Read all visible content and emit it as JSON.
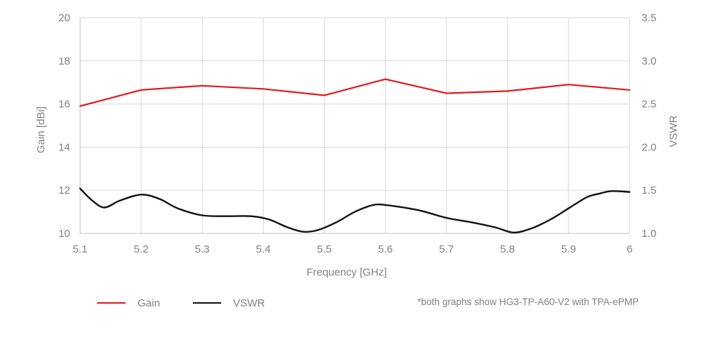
{
  "chart_data": {
    "type": "line",
    "title": "",
    "xlabel": "Frequency [GHz]",
    "ylabel_left": "Gain [dBi]",
    "ylabel_right": "VSWR",
    "xlim": [
      5.1,
      6.0
    ],
    "x_ticks": [
      5.1,
      5.2,
      5.3,
      5.4,
      5.5,
      5.6,
      5.7,
      5.8,
      5.9,
      6.0
    ],
    "x_tick_labels": [
      "5.1",
      "5.2",
      "5.3",
      "5.4",
      "5.5",
      "5.6",
      "5.7",
      "5.8",
      "5.9",
      "6"
    ],
    "y_left_lim": [
      10,
      20
    ],
    "y_left_ticks": [
      10,
      12,
      14,
      16,
      18,
      20
    ],
    "y_left_tick_labels": [
      "10",
      "12",
      "14",
      "16",
      "18",
      "20"
    ],
    "y_right_lim": [
      1.0,
      3.5
    ],
    "y_right_ticks": [
      1.0,
      1.5,
      2.0,
      2.5,
      3.0,
      3.5
    ],
    "y_right_tick_labels": [
      "1.0",
      "1.5",
      "2.0",
      "2.5",
      "3.0",
      "3.5"
    ],
    "grid": true,
    "legend_position": "bottom-left",
    "colors": {
      "grid": "#d9d9d9",
      "border": "#bfbfbf",
      "text": "#808080"
    },
    "series": [
      {
        "name": "Gain",
        "axis": "left",
        "color": "#e3191d",
        "width": 2.2,
        "smooth": false,
        "x": [
          5.1,
          5.2,
          5.3,
          5.4,
          5.5,
          5.6,
          5.7,
          5.8,
          5.9,
          6.0
        ],
        "values": [
          15.9,
          16.65,
          16.85,
          16.7,
          16.4,
          17.15,
          16.5,
          16.6,
          16.9,
          16.65
        ]
      },
      {
        "name": "VSWR",
        "axis": "right",
        "color": "#111111",
        "width": 2.4,
        "smooth": true,
        "x": [
          5.1,
          5.12,
          5.14,
          5.165,
          5.2,
          5.23,
          5.26,
          5.3,
          5.34,
          5.38,
          5.41,
          5.44,
          5.465,
          5.49,
          5.52,
          5.55,
          5.58,
          5.6,
          5.63,
          5.66,
          5.7,
          5.74,
          5.78,
          5.81,
          5.84,
          5.87,
          5.9,
          5.93,
          5.95,
          5.97,
          6.0
        ],
        "values": [
          1.52,
          1.38,
          1.3,
          1.38,
          1.45,
          1.4,
          1.29,
          1.21,
          1.2,
          1.2,
          1.16,
          1.07,
          1.02,
          1.04,
          1.13,
          1.25,
          1.33,
          1.33,
          1.3,
          1.26,
          1.18,
          1.13,
          1.07,
          1.01,
          1.06,
          1.16,
          1.29,
          1.42,
          1.46,
          1.49,
          1.48
        ]
      }
    ]
  },
  "legend": {
    "items": [
      {
        "label": "Gain",
        "color": "#e3191d"
      },
      {
        "label": "VSWR",
        "color": "#111111"
      }
    ]
  },
  "footnote": "*both graphs show HG3-TP-A60-V2 with TPA-ePMP"
}
